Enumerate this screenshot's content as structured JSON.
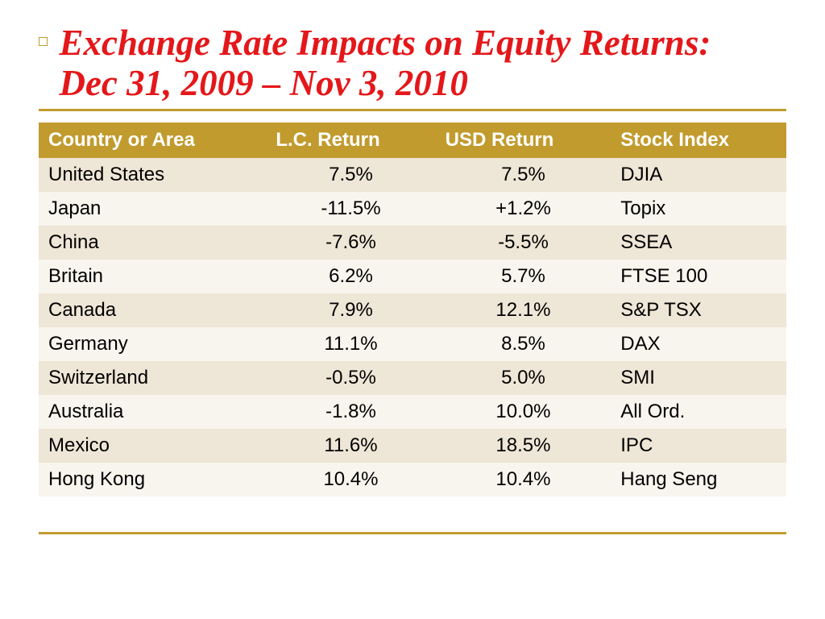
{
  "title": "Exchange Rate Impacts on Equity Returns: Dec 31, 2009 – Nov 3, 2010",
  "colors": {
    "accent": "#c19b2e",
    "title_color": "#e4171a",
    "header_bg": "#c19b2e",
    "header_fg": "#ffffff",
    "row_odd_bg": "#eee6d6",
    "row_even_bg": "#f8f5ee",
    "text": "#000000",
    "page_bg": "#ffffff"
  },
  "typography": {
    "title_font": "Garamond, Times New Roman, serif",
    "title_fontsize_pt": 34,
    "title_style": "italic bold",
    "body_font": "Arial, Helvetica, sans-serif",
    "body_fontsize_pt": 18,
    "header_fontsize_pt": 18,
    "header_weight": "bold"
  },
  "table": {
    "type": "table",
    "columns": [
      {
        "label": "Country or Area",
        "align": "left",
        "width_pct": 25
      },
      {
        "label": "L.C. Return",
        "align": "center",
        "width_pct": 25
      },
      {
        "label": "USD Return",
        "align": "center",
        "width_pct": 25
      },
      {
        "label": "Stock Index",
        "align": "left",
        "width_pct": 25
      }
    ],
    "rows": [
      {
        "country": "United States",
        "lc": "7.5%",
        "usd": "7.5%",
        "index": "DJIA"
      },
      {
        "country": "Japan",
        "lc": "-11.5%",
        "usd": "+1.2%",
        "index": "Topix"
      },
      {
        "country": "China",
        "lc": "-7.6%",
        "usd": "-5.5%",
        "index": "SSEA"
      },
      {
        "country": "Britain",
        "lc": "6.2%",
        "usd": "5.7%",
        "index": "FTSE 100"
      },
      {
        "country": "Canada",
        "lc": "7.9%",
        "usd": "12.1%",
        "index": "S&P TSX"
      },
      {
        "country": "Germany",
        "lc": "11.1%",
        "usd": "8.5%",
        "index": "DAX"
      },
      {
        "country": "Switzerland",
        "lc": "-0.5%",
        "usd": "5.0%",
        "index": "SMI"
      },
      {
        "country": "Australia",
        "lc": "-1.8%",
        "usd": "10.0%",
        "index": "All Ord."
      },
      {
        "country": "Mexico",
        "lc": "11.6%",
        "usd": "18.5%",
        "index": "IPC"
      },
      {
        "country": "Hong Kong",
        "lc": "10.4%",
        "usd": "10.4%",
        "index": "Hang Seng"
      }
    ]
  }
}
